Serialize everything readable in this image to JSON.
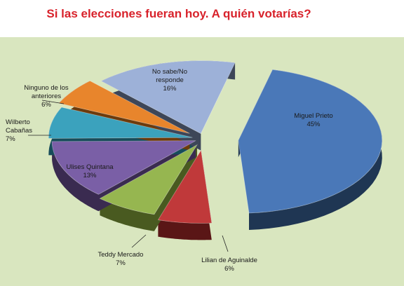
{
  "chart_data": {
    "type": "pie",
    "title": "Si las elecciones fueran hoy. A quién votarías?",
    "slices": [
      {
        "name": "Miguel Prieto",
        "value": 45,
        "label": "45%",
        "color": "#4a78b8",
        "side": "#1f3653"
      },
      {
        "name": "Lilian de Aguinalde",
        "value": 6,
        "label": "6%",
        "color": "#c0393a",
        "side": "#5a1616"
      },
      {
        "name": "Teddy Mercado",
        "value": 7,
        "label": "7%",
        "color": "#96b650",
        "side": "#495a20"
      },
      {
        "name": "Ulises Quintana",
        "value": 13,
        "label": "13%",
        "color": "#7a5fa6",
        "side": "#3a2b50"
      },
      {
        "name": "Wilberto Cabañas",
        "value": 7,
        "label": "7%",
        "color": "#3ba2bd",
        "side": "#174c5a"
      },
      {
        "name": "Ninguno de los anteriores",
        "value": 6,
        "label": "6%",
        "color": "#e8852c",
        "side": "#6d3b0c"
      },
      {
        "name": "No sabe/No responde",
        "value": 16,
        "label": "16%",
        "color": "#9db1d8",
        "side": "#3d4658"
      }
    ],
    "legend": "none"
  }
}
